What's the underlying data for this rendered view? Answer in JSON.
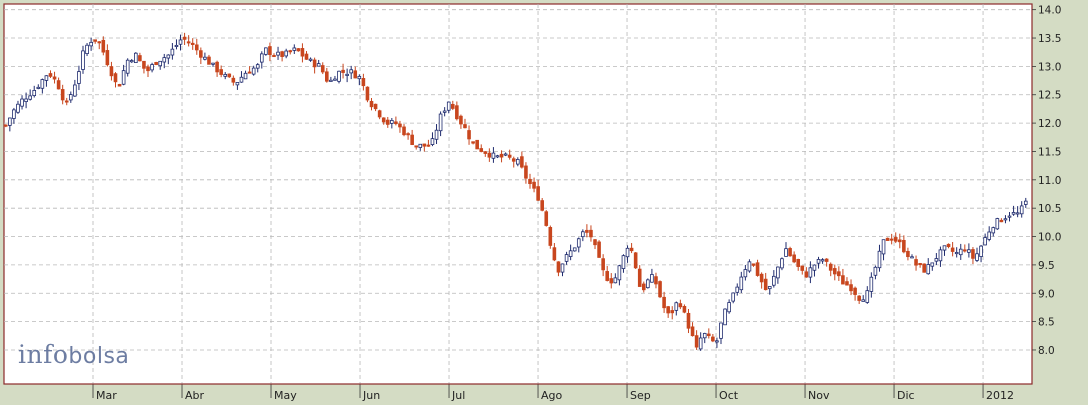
{
  "brand": {
    "part1": "info",
    "part2": "bolsa"
  },
  "colors": {
    "background": "#d4dcc4",
    "plot_area": "#ffffff",
    "frame": "#8b2a2a",
    "grid": "#b8b8b8",
    "up_candle": "#1f2b6e",
    "down_candle": "#c8461e"
  },
  "chart_data": {
    "type": "candlestick",
    "title": "",
    "xlabel": "",
    "ylabel": "",
    "ylim": [
      7.4,
      14.1
    ],
    "y_ticks": [
      "14.0",
      "13.5",
      "13.0",
      "12.5",
      "12.0",
      "11.5",
      "11.0",
      "10.5",
      "10.0",
      "9.5",
      "9.0",
      "8.5",
      "8.0"
    ],
    "y_axis_position": "right",
    "grid": "dashed",
    "x_range": [
      0.0,
      11.55
    ],
    "x_ticks": [
      {
        "label": "Mar",
        "at": 1.0
      },
      {
        "label": "Abr",
        "at": 2.0
      },
      {
        "label": "May",
        "at": 3.0
      },
      {
        "label": "Jun",
        "at": 4.0
      },
      {
        "label": "Jul",
        "at": 5.0
      },
      {
        "label": "Ago",
        "at": 6.0
      },
      {
        "label": "Sep",
        "at": 7.0
      },
      {
        "label": "Oct",
        "at": 8.0
      },
      {
        "label": "Nov",
        "at": 9.0
      },
      {
        "label": "Dic",
        "at": 10.0
      },
      {
        "label": "2012",
        "at": 11.0
      }
    ],
    "close_series": [
      [
        0.0,
        11.9
      ],
      [
        0.1,
        12.2
      ],
      [
        0.2,
        12.4
      ],
      [
        0.35,
        12.6
      ],
      [
        0.5,
        12.9
      ],
      [
        0.6,
        12.7
      ],
      [
        0.7,
        12.3
      ],
      [
        0.82,
        12.8
      ],
      [
        0.9,
        13.3
      ],
      [
        1.0,
        13.5
      ],
      [
        1.08,
        13.4
      ],
      [
        1.18,
        13.0
      ],
      [
        1.28,
        12.6
      ],
      [
        1.38,
        13.1
      ],
      [
        1.48,
        13.2
      ],
      [
        1.6,
        12.9
      ],
      [
        1.72,
        13.1
      ],
      [
        1.85,
        13.2
      ],
      [
        2.0,
        13.5
      ],
      [
        2.1,
        13.4
      ],
      [
        2.22,
        13.2
      ],
      [
        2.35,
        13.0
      ],
      [
        2.5,
        12.8
      ],
      [
        2.6,
        12.7
      ],
      [
        2.72,
        12.9
      ],
      [
        2.85,
        13.0
      ],
      [
        2.93,
        13.3
      ],
      [
        3.05,
        13.2
      ],
      [
        3.15,
        13.2
      ],
      [
        3.28,
        13.3
      ],
      [
        3.42,
        13.1
      ],
      [
        3.55,
        13.0
      ],
      [
        3.65,
        12.7
      ],
      [
        3.75,
        12.9
      ],
      [
        3.9,
        12.9
      ],
      [
        4.0,
        12.8
      ],
      [
        4.1,
        12.4
      ],
      [
        4.2,
        12.2
      ],
      [
        4.3,
        12.0
      ],
      [
        4.4,
        12.0
      ],
      [
        4.52,
        11.8
      ],
      [
        4.62,
        11.6
      ],
      [
        4.7,
        11.6
      ],
      [
        4.8,
        11.6
      ],
      [
        4.9,
        12.1
      ],
      [
        5.0,
        12.4
      ],
      [
        5.1,
        12.1
      ],
      [
        5.18,
        11.9
      ],
      [
        5.28,
        11.6
      ],
      [
        5.4,
        11.5
      ],
      [
        5.52,
        11.4
      ],
      [
        5.65,
        11.4
      ],
      [
        5.78,
        11.3
      ],
      [
        5.88,
        11.0
      ],
      [
        6.0,
        10.7
      ],
      [
        6.08,
        10.3
      ],
      [
        6.15,
        9.8
      ],
      [
        6.22,
        9.4
      ],
      [
        6.3,
        9.6
      ],
      [
        6.4,
        9.8
      ],
      [
        6.52,
        10.1
      ],
      [
        6.6,
        10.0
      ],
      [
        6.68,
        9.6
      ],
      [
        6.75,
        9.3
      ],
      [
        6.85,
        9.2
      ],
      [
        6.95,
        9.6
      ],
      [
        7.02,
        9.9
      ],
      [
        7.08,
        9.6
      ],
      [
        7.16,
        9.0
      ],
      [
        7.22,
        9.2
      ],
      [
        7.3,
        9.3
      ],
      [
        7.38,
        8.9
      ],
      [
        7.45,
        8.6
      ],
      [
        7.52,
        8.7
      ],
      [
        7.58,
        8.9
      ],
      [
        7.65,
        8.6
      ],
      [
        7.72,
        8.3
      ],
      [
        7.78,
        8.0
      ],
      [
        7.85,
        8.3
      ],
      [
        7.92,
        8.2
      ],
      [
        8.0,
        8.1
      ],
      [
        8.08,
        8.6
      ],
      [
        8.18,
        8.9
      ],
      [
        8.28,
        9.3
      ],
      [
        8.38,
        9.6
      ],
      [
        8.48,
        9.3
      ],
      [
        8.58,
        9.0
      ],
      [
        8.68,
        9.4
      ],
      [
        8.78,
        9.8
      ],
      [
        8.9,
        9.5
      ],
      [
        9.0,
        9.3
      ],
      [
        9.1,
        9.5
      ],
      [
        9.2,
        9.6
      ],
      [
        9.3,
        9.4
      ],
      [
        9.42,
        9.2
      ],
      [
        9.52,
        9.1
      ],
      [
        9.62,
        8.9
      ],
      [
        9.7,
        9.0
      ],
      [
        9.78,
        9.4
      ],
      [
        9.88,
        9.9
      ],
      [
        9.96,
        10.0
      ],
      [
        10.05,
        9.9
      ],
      [
        10.15,
        9.7
      ],
      [
        10.25,
        9.5
      ],
      [
        10.35,
        9.4
      ],
      [
        10.45,
        9.6
      ],
      [
        10.58,
        9.8
      ],
      [
        10.7,
        9.7
      ],
      [
        10.8,
        9.8
      ],
      [
        10.9,
        9.6
      ],
      [
        11.0,
        9.9
      ],
      [
        11.1,
        10.2
      ],
      [
        11.2,
        10.3
      ],
      [
        11.3,
        10.4
      ],
      [
        11.4,
        10.4
      ],
      [
        11.48,
        10.6
      ]
    ]
  }
}
